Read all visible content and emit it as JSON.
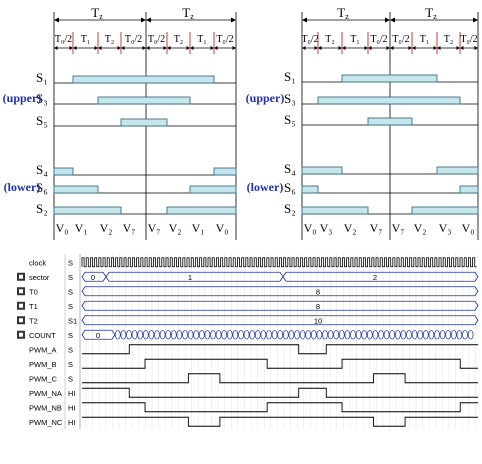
{
  "colors": {
    "pulse_fill": "#c6e6ee",
    "pulse_stroke": "#3a6f80",
    "group_label": "#1f2fb8",
    "divider": "#cc2222",
    "bus": "#1a2fa0",
    "trace": "#000000",
    "grid": "#e3e3e3"
  },
  "left_diagram": {
    "top_periods": [
      "T",
      "T"
    ],
    "period_sub": "z",
    "segments": [
      "T₀/2",
      "T₁",
      "T₂",
      "T₀/2",
      "T₀/2",
      "T₂",
      "T₁",
      "T₀/2"
    ],
    "upper_label": "(upper)",
    "lower_label": "(lower)",
    "upper_rows": [
      {
        "label": "S₁",
        "pulses": [
          [
            1,
            7
          ]
        ]
      },
      {
        "label": "S₃",
        "pulses": [
          [
            2,
            6
          ]
        ]
      },
      {
        "label": "S₅",
        "pulses": [
          [
            3,
            5
          ]
        ]
      }
    ],
    "lower_rows": [
      {
        "label": "S₄",
        "pulses": [
          [
            0,
            1
          ],
          [
            7,
            8
          ]
        ]
      },
      {
        "label": "S₆",
        "pulses": [
          [
            0,
            2
          ],
          [
            6,
            8
          ]
        ]
      },
      {
        "label": "S₂",
        "pulses": [
          [
            0,
            3
          ],
          [
            5,
            8
          ]
        ]
      }
    ],
    "vectors": [
      "V₀",
      "V₁",
      "V₂",
      "V₇",
      "V₇",
      "V₂",
      "V₁",
      "V₀"
    ]
  },
  "right_diagram": {
    "top_periods": [
      "T",
      "T"
    ],
    "period_sub": "z",
    "segments": [
      "T₀/2",
      "T₂",
      "T₁",
      "T₀/2",
      "T₀/2",
      "T₁",
      "T₂",
      "T₀/2"
    ],
    "upper_label": "(upper)",
    "lower_label": "(lower)",
    "upper_rows": [
      {
        "label": "S₁",
        "pulses": [
          [
            2,
            6
          ]
        ]
      },
      {
        "label": "S₃",
        "pulses": [
          [
            1,
            7
          ]
        ]
      },
      {
        "label": "S₅",
        "pulses": [
          [
            3,
            5
          ]
        ]
      }
    ],
    "lower_rows": [
      {
        "label": "S₄",
        "pulses": [
          [
            0,
            2
          ],
          [
            6,
            8
          ]
        ]
      },
      {
        "label": "S₆",
        "pulses": [
          [
            0,
            1
          ],
          [
            7,
            8
          ]
        ]
      },
      {
        "label": "S₂",
        "pulses": [
          [
            0,
            3
          ],
          [
            5,
            8
          ]
        ]
      }
    ],
    "vectors": [
      "V₀",
      "V₃",
      "V₂",
      "V₇",
      "V₇",
      "V₂",
      "V₃",
      "V₀"
    ]
  },
  "waveform": {
    "signals": [
      {
        "name": "clock",
        "icon": "",
        "value": "S",
        "kind": "clock"
      },
      {
        "name": "sector",
        "icon": "bus-icon",
        "value": "S",
        "kind": "bus",
        "bus_labels": [
          "0",
          "1",
          "2"
        ]
      },
      {
        "name": "T0",
        "icon": "bus-icon",
        "value": "S",
        "kind": "bus",
        "bus_labels": [
          "8"
        ]
      },
      {
        "name": "T1",
        "icon": "bus-icon",
        "value": "S",
        "kind": "bus",
        "bus_labels": [
          "8"
        ]
      },
      {
        "name": "T2",
        "icon": "bus-icon",
        "value": "S1",
        "kind": "bus",
        "bus_labels": [
          "10"
        ]
      },
      {
        "name": "COUNT",
        "icon": "bus-icon",
        "value": "S",
        "kind": "counter",
        "bus_labels": [
          "0"
        ]
      },
      {
        "name": "PWM_A",
        "icon": "",
        "value": "S",
        "kind": "pwm"
      },
      {
        "name": "PWM_B",
        "icon": "",
        "value": "S",
        "kind": "pwm"
      },
      {
        "name": "PWM_C",
        "icon": "",
        "value": "S",
        "kind": "pwm"
      },
      {
        "name": "PWM_NA",
        "icon": "",
        "value": "HI",
        "kind": "pwm"
      },
      {
        "name": "PWM_NB",
        "icon": "",
        "value": "HI",
        "kind": "pwm"
      },
      {
        "name": "PWM_NC",
        "icon": "",
        "value": "HI",
        "kind": "pwm"
      }
    ]
  }
}
